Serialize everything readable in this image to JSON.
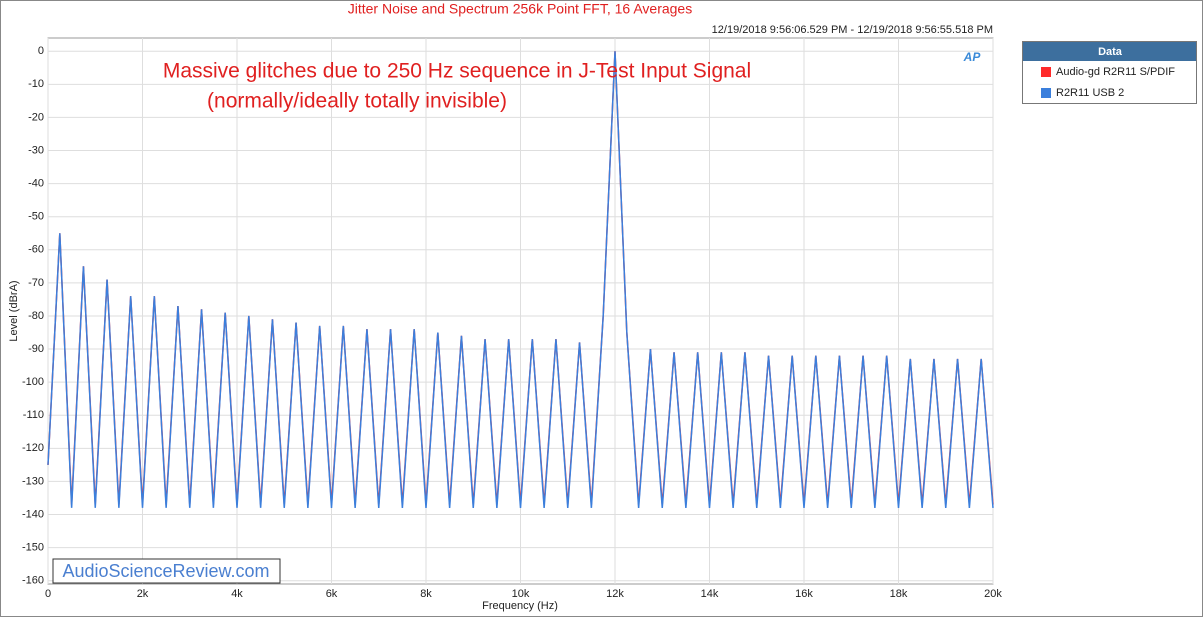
{
  "chart_data": {
    "type": "line",
    "title": "Jitter Noise and Spectrum 256k Point FFT, 16 Averages",
    "subtitle": "12/19/2018 9:56:06.529 PM - 12/19/2018 9:56:55.518 PM",
    "annotations": [
      "Massive glitches due to 250 Hz sequence in J-Test Input Signal",
      "(normally/ideally totally invisible)"
    ],
    "watermark": "AudioScienceReview.com",
    "logo": "AP",
    "x_label": "Frequency (Hz)",
    "y_label": "Level (dBrA)",
    "legend_title": "Data",
    "legend_position": "right",
    "grid": true,
    "xlim": [
      0,
      20000
    ],
    "ylim": [
      -161,
      4
    ],
    "xticks": [
      0,
      {
        "value": 2000,
        "label": "2k"
      },
      {
        "value": 4000,
        "label": "4k"
      },
      {
        "value": 6000,
        "label": "6k"
      },
      {
        "value": 8000,
        "label": "8k"
      },
      {
        "value": 10000,
        "label": "10k"
      },
      {
        "value": 12000,
        "label": "12k"
      },
      {
        "value": 14000,
        "label": "14k"
      },
      {
        "value": 16000,
        "label": "16k"
      },
      {
        "value": 18000,
        "label": "18k"
      },
      {
        "value": 20000,
        "label": "20k"
      }
    ],
    "yticks": [
      0,
      -10,
      -20,
      -30,
      -40,
      -50,
      -60,
      -70,
      -80,
      -90,
      -100,
      -110,
      -120,
      -130,
      -140,
      -150,
      -160
    ],
    "x": [
      0,
      250,
      500,
      750,
      1000,
      1250,
      1500,
      1750,
      2000,
      2250,
      2500,
      2750,
      3000,
      3250,
      3500,
      3750,
      4000,
      4250,
      4500,
      4750,
      5000,
      5250,
      5500,
      5750,
      6000,
      6250,
      6500,
      6750,
      7000,
      7250,
      7500,
      7750,
      8000,
      8250,
      8500,
      8750,
      9000,
      9250,
      9500,
      9750,
      10000,
      10250,
      10500,
      10750,
      11000,
      11250,
      11500,
      11750,
      12000,
      12250,
      12500,
      12750,
      13000,
      13250,
      13500,
      13750,
      14000,
      14250,
      14500,
      14750,
      15000,
      15250,
      15500,
      15750,
      16000,
      16250,
      16500,
      16750,
      17000,
      17250,
      17500,
      17750,
      18000,
      18250,
      18500,
      18750,
      19000,
      19250,
      19500,
      19750,
      20000
    ],
    "series": [
      {
        "name": "Audio-gd R2R11 S/PDIF",
        "color": "#ff2a2a",
        "values": [
          -125,
          -55,
          -137,
          -65,
          -137,
          -69,
          -137,
          -74,
          -137,
          -74,
          -137,
          -77,
          -137,
          -78,
          -137,
          -79,
          -137,
          -80,
          -137,
          -81,
          -137,
          -82,
          -137,
          -83,
          -137,
          -83,
          -137,
          -84,
          -137,
          -84,
          -137,
          -84,
          -137,
          -85,
          -137,
          -86,
          -137,
          -87,
          -137,
          -87,
          -137,
          -87,
          -137,
          -87,
          -137,
          -88,
          -137,
          -80,
          0,
          -85,
          -137,
          -90,
          -137,
          -91,
          -137,
          -91,
          -137,
          -91,
          -137,
          -91,
          -137,
          -92,
          -137,
          -92,
          -137,
          -92,
          -137,
          -92,
          -137,
          -92,
          -137,
          -92,
          -137,
          -93,
          -137,
          -93,
          -137,
          -93,
          -137,
          -93,
          -137
        ]
      },
      {
        "name": "R2R11 USB 2",
        "color": "#3b7fdc",
        "values": [
          -125,
          -55,
          -138,
          -65,
          -138,
          -69,
          -138,
          -74,
          -138,
          -74,
          -138,
          -77,
          -138,
          -78,
          -138,
          -79,
          -138,
          -80,
          -138,
          -81,
          -138,
          -82,
          -138,
          -83,
          -138,
          -83,
          -138,
          -84,
          -138,
          -84,
          -138,
          -84,
          -138,
          -85,
          -138,
          -86,
          -138,
          -87,
          -138,
          -87,
          -138,
          -87,
          -138,
          -87,
          -138,
          -88,
          -138,
          -80,
          0,
          -85,
          -138,
          -90,
          -138,
          -91,
          -138,
          -91,
          -138,
          -91,
          -138,
          -91,
          -138,
          -92,
          -138,
          -92,
          -138,
          -92,
          -138,
          -92,
          -138,
          -92,
          -138,
          -92,
          -138,
          -93,
          -138,
          -93,
          -138,
          -93,
          -138,
          -93,
          -138
        ]
      }
    ]
  }
}
